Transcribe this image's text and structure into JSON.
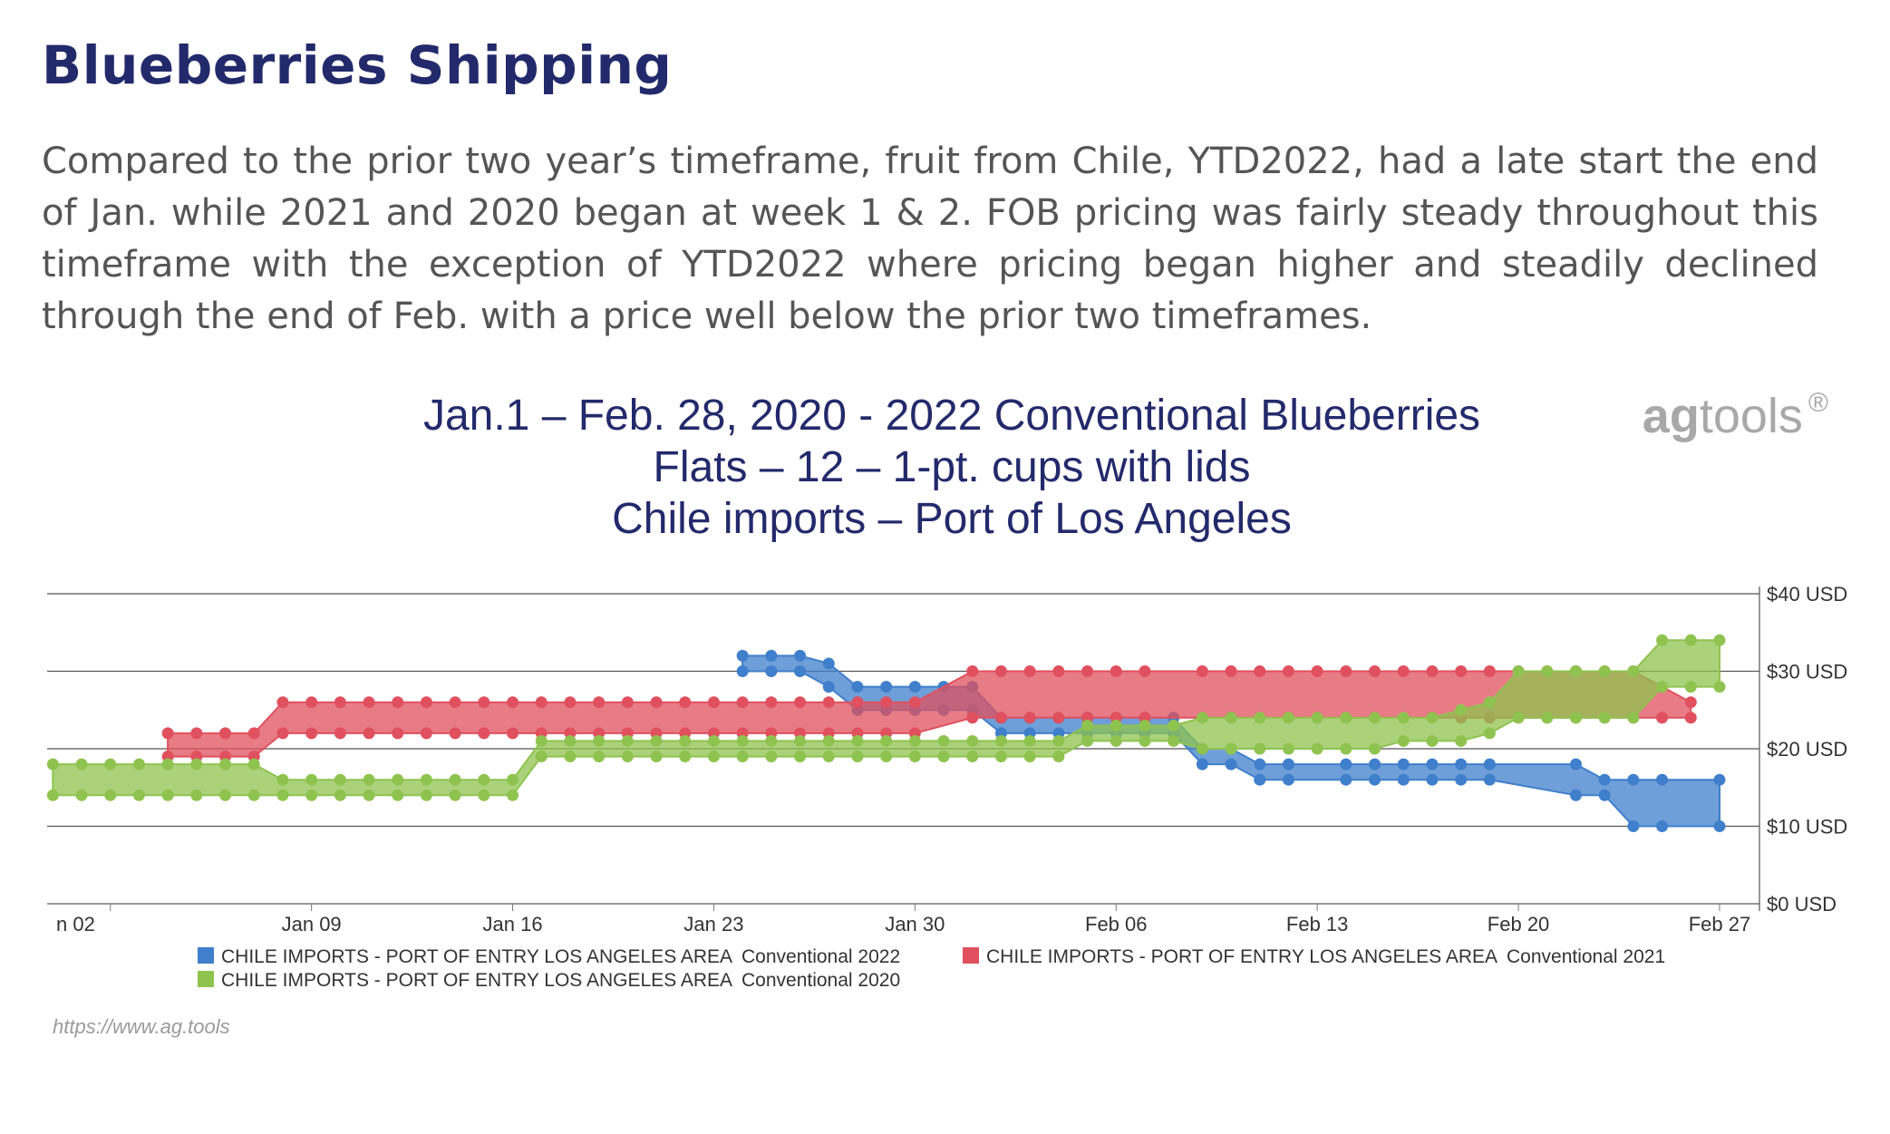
{
  "heading": "Blueberries Shipping",
  "intro": "Compared to the prior two year’s timeframe, fruit from Chile, YTD2022, had a late start the end of Jan. while 2021 and 2020 began at week 1 & 2.  FOB pricing was fairly steady throughout this timeframe with the exception of YTD2022 where pricing began higher and steadily declined through the end of Feb. with a price well below the prior two timeframes.",
  "brand": {
    "part1": "ag",
    "part2": "tools",
    "mark": "®"
  },
  "source": "https://www.ag.tools",
  "chart_data": {
    "type": "area",
    "title_lines": [
      "Jan.1 – Feb. 28, 2020 - 2022 Conventional Blueberries",
      "Flats – 12 – 1-pt. cups with lids",
      "Chile imports – Port of Los Angeles"
    ],
    "x_tick_labels": [
      "n 02",
      "Jan 09",
      "Jan 16",
      "Jan 23",
      "Jan 30",
      "Feb 06",
      "Feb 13",
      "Feb 20",
      "Feb 27"
    ],
    "x_tick_days": [
      2,
      9,
      16,
      23,
      30,
      37,
      44,
      51,
      58
    ],
    "xlim_days": [
      -0.2,
      59.2
    ],
    "y_tick_labels": [
      "$0 USD",
      "$10 USD",
      "$20 USD",
      "$30 USD",
      "$40 USD"
    ],
    "y_ticks": [
      0,
      10,
      20,
      30,
      40
    ],
    "ylim": [
      0,
      40
    ],
    "grid": true,
    "legend_position": "bottom",
    "series": [
      {
        "name": "CHILE IMPORTS - PORT OF ENTRY LOS ANGELES AREA",
        "label": "Conventional 2022",
        "color": "#3f7fcb",
        "points": [
          [
            24,
            30,
            32
          ],
          [
            25,
            30,
            32
          ],
          [
            26,
            30,
            32
          ],
          [
            27,
            28,
            31
          ],
          [
            28,
            25,
            28
          ],
          [
            29,
            25,
            28
          ],
          [
            30,
            25,
            28
          ],
          [
            31,
            25,
            28
          ],
          [
            32,
            25,
            28
          ],
          [
            33,
            22,
            24
          ],
          [
            34,
            22,
            24
          ],
          [
            35,
            22,
            24
          ],
          [
            36,
            22,
            24
          ],
          [
            37,
            22,
            24
          ],
          [
            38,
            22,
            24
          ],
          [
            39,
            22,
            24
          ],
          [
            40,
            18,
            20
          ],
          [
            41,
            18,
            20
          ],
          [
            42,
            16,
            18
          ],
          [
            43,
            16,
            18
          ],
          [
            45,
            16,
            18
          ],
          [
            46,
            16,
            18
          ],
          [
            47,
            16,
            18
          ],
          [
            48,
            16,
            18
          ],
          [
            49,
            16,
            18
          ],
          [
            50,
            16,
            18
          ],
          [
            53,
            14,
            18
          ],
          [
            54,
            14,
            16
          ],
          [
            55,
            10,
            16
          ],
          [
            56,
            10,
            16
          ],
          [
            58,
            10,
            16
          ]
        ]
      },
      {
        "name": "CHILE IMPORTS - PORT OF ENTRY LOS ANGELES AREA",
        "label": "Conventional 2021",
        "color": "#e0505e",
        "points": [
          [
            4,
            19,
            22
          ],
          [
            5,
            19,
            22
          ],
          [
            6,
            19,
            22
          ],
          [
            7,
            19,
            22
          ],
          [
            8,
            22,
            26
          ],
          [
            9,
            22,
            26
          ],
          [
            10,
            22,
            26
          ],
          [
            11,
            22,
            26
          ],
          [
            12,
            22,
            26
          ],
          [
            13,
            22,
            26
          ],
          [
            14,
            22,
            26
          ],
          [
            15,
            22,
            26
          ],
          [
            16,
            22,
            26
          ],
          [
            17,
            22,
            26
          ],
          [
            18,
            22,
            26
          ],
          [
            19,
            22,
            26
          ],
          [
            20,
            22,
            26
          ],
          [
            21,
            22,
            26
          ],
          [
            22,
            22,
            26
          ],
          [
            23,
            22,
            26
          ],
          [
            24,
            22,
            26
          ],
          [
            25,
            22,
            26
          ],
          [
            26,
            22,
            26
          ],
          [
            27,
            22,
            26
          ],
          [
            28,
            22,
            26
          ],
          [
            29,
            22,
            26
          ],
          [
            30,
            22,
            26
          ],
          [
            32,
            24,
            30
          ],
          [
            33,
            24,
            30
          ],
          [
            34,
            24,
            30
          ],
          [
            35,
            24,
            30
          ],
          [
            36,
            24,
            30
          ],
          [
            37,
            24,
            30
          ],
          [
            38,
            24,
            30
          ],
          [
            40,
            24,
            30
          ],
          [
            41,
            24,
            30
          ],
          [
            42,
            24,
            30
          ],
          [
            43,
            24,
            30
          ],
          [
            44,
            24,
            30
          ],
          [
            45,
            24,
            30
          ],
          [
            46,
            24,
            30
          ],
          [
            47,
            24,
            30
          ],
          [
            48,
            24,
            30
          ],
          [
            49,
            24,
            30
          ],
          [
            50,
            24,
            30
          ],
          [
            51,
            24,
            30
          ],
          [
            52,
            24,
            30
          ],
          [
            53,
            24,
            30
          ],
          [
            54,
            24,
            30
          ],
          [
            55,
            24,
            30
          ],
          [
            56,
            24,
            28
          ],
          [
            57,
            24,
            26
          ]
        ]
      },
      {
        "name": "CHILE IMPORTS - PORT OF ENTRY LOS ANGELES AREA",
        "label": "Conventional 2020",
        "color": "#8fc34f",
        "points": [
          [
            0,
            14,
            18
          ],
          [
            1,
            14,
            18
          ],
          [
            2,
            14,
            18
          ],
          [
            3,
            14,
            18
          ],
          [
            4,
            14,
            18
          ],
          [
            5,
            14,
            18
          ],
          [
            6,
            14,
            18
          ],
          [
            7,
            14,
            18
          ],
          [
            8,
            14,
            16
          ],
          [
            9,
            14,
            16
          ],
          [
            10,
            14,
            16
          ],
          [
            11,
            14,
            16
          ],
          [
            12,
            14,
            16
          ],
          [
            13,
            14,
            16
          ],
          [
            14,
            14,
            16
          ],
          [
            15,
            14,
            16
          ],
          [
            16,
            14,
            16
          ],
          [
            17,
            19,
            21
          ],
          [
            18,
            19,
            21
          ],
          [
            19,
            19,
            21
          ],
          [
            20,
            19,
            21
          ],
          [
            21,
            19,
            21
          ],
          [
            22,
            19,
            21
          ],
          [
            23,
            19,
            21
          ],
          [
            24,
            19,
            21
          ],
          [
            25,
            19,
            21
          ],
          [
            26,
            19,
            21
          ],
          [
            27,
            19,
            21
          ],
          [
            28,
            19,
            21
          ],
          [
            29,
            19,
            21
          ],
          [
            30,
            19,
            21
          ],
          [
            31,
            19,
            21
          ],
          [
            32,
            19,
            21
          ],
          [
            33,
            19,
            21
          ],
          [
            34,
            19,
            21
          ],
          [
            35,
            19,
            21
          ],
          [
            36,
            21,
            23
          ],
          [
            37,
            21,
            23
          ],
          [
            38,
            21,
            23
          ],
          [
            39,
            21,
            23
          ],
          [
            40,
            20,
            24
          ],
          [
            41,
            20,
            24
          ],
          [
            42,
            20,
            24
          ],
          [
            43,
            20,
            24
          ],
          [
            44,
            20,
            24
          ],
          [
            45,
            20,
            24
          ],
          [
            46,
            20,
            24
          ],
          [
            47,
            21,
            24
          ],
          [
            48,
            21,
            24
          ],
          [
            49,
            21,
            25
          ],
          [
            50,
            22,
            26
          ],
          [
            51,
            24,
            30
          ],
          [
            52,
            24,
            30
          ],
          [
            53,
            24,
            30
          ],
          [
            54,
            24,
            30
          ],
          [
            55,
            24,
            30
          ],
          [
            56,
            28,
            34
          ],
          [
            57,
            28,
            34
          ],
          [
            58,
            28,
            34
          ]
        ]
      }
    ]
  }
}
